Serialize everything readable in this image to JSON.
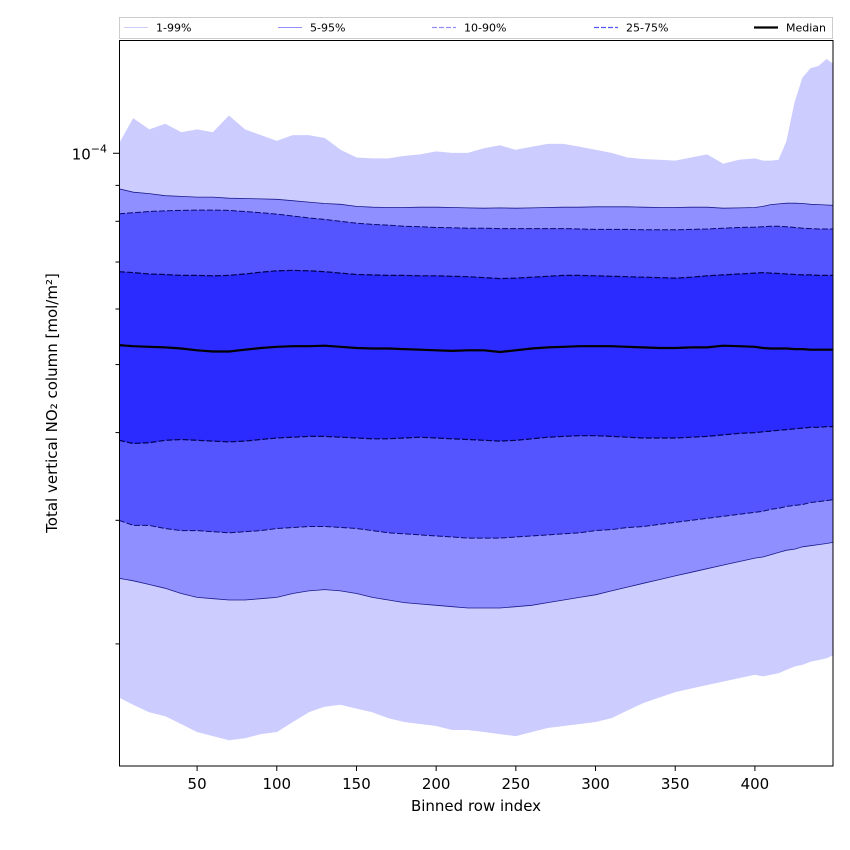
{
  "chart_data": {
    "type": "area",
    "title": "",
    "xlabel": "Binned row index",
    "ylabel": "Total vertical NO₂ column [mol/m²]",
    "y_scale": "log",
    "xlim": [
      1,
      449
    ],
    "ylim": [
      1.34e-05,
      0.000145
    ],
    "x_ticks": [
      50,
      100,
      150,
      200,
      250,
      300,
      350,
      400
    ],
    "y_major_tick": {
      "value": 0.0001,
      "label": "10",
      "exponent": "−4"
    },
    "y_minor_ticks": [
      2e-05,
      3e-05,
      4e-05,
      5e-05,
      6e-05,
      7e-05,
      8e-05,
      9e-05
    ],
    "grid": false,
    "legend_position": "top, above plot",
    "legend": [
      {
        "label": "1-99%",
        "style": "thin-solid",
        "color": "#ccccff"
      },
      {
        "label": "5-95%",
        "style": "thin-solid",
        "color": "#8f8fff"
      },
      {
        "label": "10-90%",
        "style": "dashed",
        "color": "#8f8fff"
      },
      {
        "label": "25-75%",
        "style": "dashed",
        "color": "#5555ff"
      },
      {
        "label": "Median",
        "style": "thick-solid",
        "color": "#000000"
      }
    ],
    "x": [
      1,
      10,
      20,
      30,
      40,
      50,
      60,
      70,
      80,
      90,
      100,
      110,
      120,
      130,
      140,
      150,
      160,
      170,
      180,
      190,
      200,
      210,
      220,
      230,
      240,
      250,
      260,
      270,
      280,
      290,
      300,
      310,
      320,
      330,
      340,
      350,
      360,
      370,
      380,
      390,
      400,
      405,
      410,
      415,
      420,
      425,
      430,
      435,
      440,
      445,
      449
    ],
    "series": [
      {
        "name": "1-99%",
        "color": "#ccccff",
        "upper": [
          0.000103,
          0.000112,
          0.000108,
          0.00011,
          0.000107,
          0.000108,
          0.000107,
          0.000113,
          0.000108,
          0.000106,
          0.000104,
          0.000106,
          0.000106,
          0.000105,
          0.000101,
          9.85e-05,
          9.82e-05,
          9.82e-05,
          9.9e-05,
          9.95e-05,
          0.0001005,
          0.0001,
          0.0001,
          0.0001015,
          0.0001025,
          0.000101,
          0.000102,
          0.000103,
          0.000103,
          0.000102,
          0.000101,
          0.0001,
          9.85e-05,
          9.8e-05,
          9.78e-05,
          9.75e-05,
          9.85e-05,
          9.95e-05,
          9.65e-05,
          9.78e-05,
          9.82e-05,
          9.75e-05,
          9.75e-05,
          9.78e-05,
          0.000104,
          0.000118,
          0.000128,
          0.000132,
          0.000133,
          0.000136,
          0.000134
        ],
        "lower": [
          1.68e-05,
          1.64e-05,
          1.6e-05,
          1.58e-05,
          1.54e-05,
          1.5e-05,
          1.48e-05,
          1.46e-05,
          1.47e-05,
          1.49e-05,
          1.5e-05,
          1.55e-05,
          1.6e-05,
          1.63e-05,
          1.64e-05,
          1.62e-05,
          1.6e-05,
          1.57e-05,
          1.55e-05,
          1.54e-05,
          1.53e-05,
          1.51e-05,
          1.51e-05,
          1.5e-05,
          1.49e-05,
          1.48e-05,
          1.5e-05,
          1.52e-05,
          1.53e-05,
          1.54e-05,
          1.55e-05,
          1.57e-05,
          1.61e-05,
          1.65e-05,
          1.68e-05,
          1.71e-05,
          1.73e-05,
          1.75e-05,
          1.77e-05,
          1.79e-05,
          1.81e-05,
          1.8e-05,
          1.81e-05,
          1.82e-05,
          1.84e-05,
          1.86e-05,
          1.87e-05,
          1.89e-05,
          1.9e-05,
          1.91e-05,
          1.93e-05
        ]
      },
      {
        "name": "5-95%",
        "color": "#8f8fff",
        "upper": [
          8.9e-05,
          8.8e-05,
          8.76e-05,
          8.7e-05,
          8.68e-05,
          8.66e-05,
          8.66e-05,
          8.63e-05,
          8.62e-05,
          8.61e-05,
          8.6e-05,
          8.56e-05,
          8.52e-05,
          8.48e-05,
          8.46e-05,
          8.4e-05,
          8.38e-05,
          8.37e-05,
          8.37e-05,
          8.38e-05,
          8.38e-05,
          8.37e-05,
          8.36e-05,
          8.35e-05,
          8.36e-05,
          8.35e-05,
          8.36e-05,
          8.37e-05,
          8.38e-05,
          8.38e-05,
          8.39e-05,
          8.39e-05,
          8.39e-05,
          8.38e-05,
          8.37e-05,
          8.37e-05,
          8.38e-05,
          8.38e-05,
          8.35e-05,
          8.36e-05,
          8.37e-05,
          8.4e-05,
          8.45e-05,
          8.47e-05,
          8.49e-05,
          8.49e-05,
          8.48e-05,
          8.46e-05,
          8.45e-05,
          8.44e-05,
          8.43e-05
        ],
        "lower": [
          2.48e-05,
          2.46e-05,
          2.43e-05,
          2.4e-05,
          2.36e-05,
          2.33e-05,
          2.32e-05,
          2.31e-05,
          2.31e-05,
          2.32e-05,
          2.33e-05,
          2.36e-05,
          2.38e-05,
          2.39e-05,
          2.38e-05,
          2.36e-05,
          2.33e-05,
          2.31e-05,
          2.29e-05,
          2.28e-05,
          2.27e-05,
          2.26e-05,
          2.25e-05,
          2.25e-05,
          2.25e-05,
          2.26e-05,
          2.27e-05,
          2.29e-05,
          2.31e-05,
          2.33e-05,
          2.35e-05,
          2.38e-05,
          2.41e-05,
          2.44e-05,
          2.47e-05,
          2.5e-05,
          2.53e-05,
          2.56e-05,
          2.59e-05,
          2.62e-05,
          2.65e-05,
          2.66e-05,
          2.68e-05,
          2.7e-05,
          2.72e-05,
          2.73e-05,
          2.75e-05,
          2.76e-05,
          2.77e-05,
          2.78e-05,
          2.79e-05
        ]
      },
      {
        "name": "10-90%",
        "color": "#5555ff",
        "upper": [
          8.2e-05,
          8.23e-05,
          8.26e-05,
          8.28e-05,
          8.29e-05,
          8.3e-05,
          8.3e-05,
          8.29e-05,
          8.26e-05,
          8.23e-05,
          8.19e-05,
          8.14e-05,
          8.09e-05,
          8.05e-05,
          8e-05,
          7.95e-05,
          7.92e-05,
          7.9e-05,
          7.87e-05,
          7.86e-05,
          7.84e-05,
          7.83e-05,
          7.82e-05,
          7.82e-05,
          7.81e-05,
          7.81e-05,
          7.81e-05,
          7.81e-05,
          7.81e-05,
          7.8e-05,
          7.79e-05,
          7.79e-05,
          7.79e-05,
          7.78e-05,
          7.78e-05,
          7.78e-05,
          7.79e-05,
          7.8e-05,
          7.82e-05,
          7.84e-05,
          7.85e-05,
          7.86e-05,
          7.87e-05,
          7.87e-05,
          7.86e-05,
          7.84e-05,
          7.82e-05,
          7.81e-05,
          7.8e-05,
          7.8e-05,
          7.8e-05
        ],
        "lower": [
          3e-05,
          2.95e-05,
          2.95e-05,
          2.92e-05,
          2.9e-05,
          2.9e-05,
          2.89e-05,
          2.88e-05,
          2.89e-05,
          2.9e-05,
          2.92e-05,
          2.93e-05,
          2.94e-05,
          2.94e-05,
          2.93e-05,
          2.92e-05,
          2.9e-05,
          2.88e-05,
          2.87e-05,
          2.86e-05,
          2.85e-05,
          2.84e-05,
          2.83e-05,
          2.83e-05,
          2.83e-05,
          2.84e-05,
          2.85e-05,
          2.86e-05,
          2.87e-05,
          2.88e-05,
          2.9e-05,
          2.91e-05,
          2.93e-05,
          2.94e-05,
          2.96e-05,
          2.98e-05,
          3e-05,
          3.02e-05,
          3.04e-05,
          3.06e-05,
          3.08e-05,
          3.09e-05,
          3.11e-05,
          3.12e-05,
          3.14e-05,
          3.15e-05,
          3.16e-05,
          3.18e-05,
          3.19e-05,
          3.2e-05,
          3.21e-05
        ]
      },
      {
        "name": "25-75%",
        "color": "#2b2bff",
        "upper": [
          6.78e-05,
          6.76e-05,
          6.73e-05,
          6.72e-05,
          6.7e-05,
          6.7e-05,
          6.69e-05,
          6.7e-05,
          6.73e-05,
          6.77e-05,
          6.8e-05,
          6.81e-05,
          6.8e-05,
          6.78e-05,
          6.75e-05,
          6.72e-05,
          6.71e-05,
          6.7e-05,
          6.7e-05,
          6.69e-05,
          6.69e-05,
          6.68e-05,
          6.67e-05,
          6.65e-05,
          6.63e-05,
          6.64e-05,
          6.66e-05,
          6.68e-05,
          6.7e-05,
          6.7e-05,
          6.69e-05,
          6.68e-05,
          6.67e-05,
          6.66e-05,
          6.65e-05,
          6.64e-05,
          6.66e-05,
          6.69e-05,
          6.71e-05,
          6.73e-05,
          6.75e-05,
          6.76e-05,
          6.75e-05,
          6.74e-05,
          6.73e-05,
          6.72e-05,
          6.71e-05,
          6.71e-05,
          6.7e-05,
          6.7e-05,
          6.7e-05
        ],
        "lower": [
          3.9e-05,
          3.86e-05,
          3.87e-05,
          3.9e-05,
          3.91e-05,
          3.9e-05,
          3.89e-05,
          3.88e-05,
          3.89e-05,
          3.91e-05,
          3.93e-05,
          3.94e-05,
          3.95e-05,
          3.95e-05,
          3.94e-05,
          3.93e-05,
          3.92e-05,
          3.92e-05,
          3.93e-05,
          3.94e-05,
          3.93e-05,
          3.92e-05,
          3.91e-05,
          3.9e-05,
          3.89e-05,
          3.9e-05,
          3.92e-05,
          3.94e-05,
          3.95e-05,
          3.96e-05,
          3.96e-05,
          3.95e-05,
          3.94e-05,
          3.93e-05,
          3.93e-05,
          3.93e-05,
          3.94e-05,
          3.95e-05,
          3.97e-05,
          3.99e-05,
          4e-05,
          4.01e-05,
          4.02e-05,
          4.03e-05,
          4.04e-05,
          4.05e-05,
          4.06e-05,
          4.07e-05,
          4.07e-05,
          4.08e-05,
          4.08e-05
        ]
      },
      {
        "name": "Median",
        "color": "#000000",
        "values": [
          5.33e-05,
          5.31e-05,
          5.3e-05,
          5.29e-05,
          5.27e-05,
          5.24e-05,
          5.22e-05,
          5.22e-05,
          5.25e-05,
          5.28e-05,
          5.3e-05,
          5.31e-05,
          5.31e-05,
          5.32e-05,
          5.3e-05,
          5.28e-05,
          5.27e-05,
          5.27e-05,
          5.26e-05,
          5.25e-05,
          5.24e-05,
          5.23e-05,
          5.24e-05,
          5.24e-05,
          5.21e-05,
          5.24e-05,
          5.27e-05,
          5.29e-05,
          5.3e-05,
          5.31e-05,
          5.31e-05,
          5.31e-05,
          5.3e-05,
          5.29e-05,
          5.28e-05,
          5.28e-05,
          5.29e-05,
          5.29e-05,
          5.32e-05,
          5.31e-05,
          5.3e-05,
          5.28e-05,
          5.27e-05,
          5.27e-05,
          5.27e-05,
          5.26e-05,
          5.26e-05,
          5.25e-05,
          5.25e-05,
          5.25e-05,
          5.25e-05
        ]
      }
    ]
  }
}
